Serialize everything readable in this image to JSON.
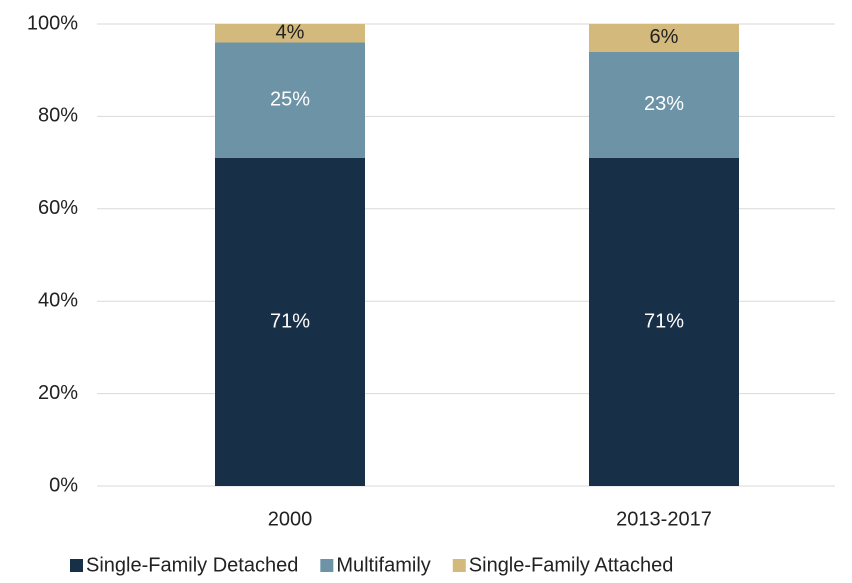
{
  "chart_data": {
    "type": "stacked_bar",
    "categories": [
      "2000",
      "2013-2017"
    ],
    "series": [
      {
        "name": "Single-Family Detached",
        "color": "#172f47",
        "values": [
          71,
          71
        ],
        "value_labels": [
          "71%",
          "71%"
        ],
        "label_color": "#ffffff"
      },
      {
        "name": "Multifamily",
        "color": "#6d93a6",
        "values": [
          25,
          23
        ],
        "value_labels": [
          "25%",
          "23%"
        ],
        "label_color": "#ffffff"
      },
      {
        "name": "Single-Family Attached",
        "color": "#d3b97c",
        "values": [
          4,
          6
        ],
        "value_labels": [
          "4%",
          "6%"
        ],
        "label_color": "#222222"
      }
    ],
    "ylim": [
      0,
      100
    ],
    "yticks": [
      {
        "value": 0,
        "label": "0%"
      },
      {
        "value": 20,
        "label": "20%"
      },
      {
        "value": 40,
        "label": "40%"
      },
      {
        "value": 60,
        "label": "60%"
      },
      {
        "value": 80,
        "label": "80%"
      },
      {
        "value": 100,
        "label": "100%"
      }
    ],
    "grid": true,
    "legend": "bottom"
  }
}
